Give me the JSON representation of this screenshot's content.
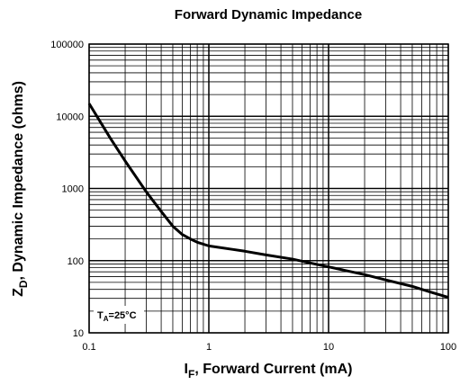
{
  "chart_data": {
    "type": "line",
    "title": "Forward Dynamic Impedance",
    "xlabel": {
      "main": "I",
      "sub": "F",
      "rest": ", Forward Current (mA)"
    },
    "ylabel": {
      "main": "Z",
      "sub": "D",
      "rest": ", Dynamic Impedance (ohms)"
    },
    "xscale": "log",
    "yscale": "log",
    "xlim": [
      0.1,
      100
    ],
    "ylim": [
      10,
      100000
    ],
    "x_tick_labels": [
      "0.1",
      "1",
      "10",
      "100"
    ],
    "y_tick_labels": [
      "10",
      "100",
      "1000",
      "10000",
      "100000"
    ],
    "grid": true,
    "annotation": {
      "main": "T",
      "sub": "A",
      "rest": "=25°C"
    },
    "series": [
      {
        "x": [
          0.1,
          0.15,
          0.2,
          0.3,
          0.4,
          0.5,
          0.6,
          0.7,
          0.8,
          1,
          1.5,
          2,
          3,
          5,
          7,
          10,
          20,
          30,
          50,
          70,
          100
        ],
        "y": [
          15000,
          5000,
          2400,
          900,
          480,
          300,
          230,
          200,
          180,
          160,
          145,
          135,
          120,
          105,
          93,
          82,
          64,
          54,
          44,
          37,
          31
        ]
      }
    ]
  }
}
